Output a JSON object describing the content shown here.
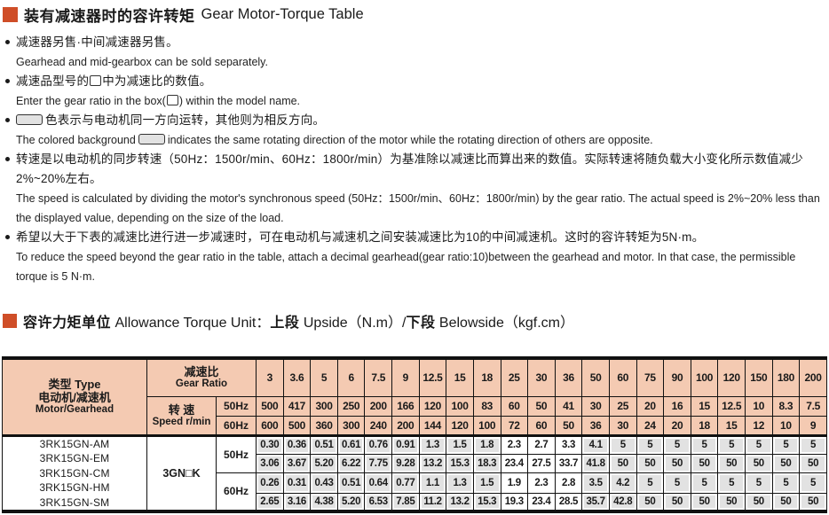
{
  "section1": {
    "title_zh": "装有减速器时的容许转矩",
    "title_en": "Gear Motor-Torque Table"
  },
  "notes": {
    "n1": {
      "zh": "减速器另售·中间减速器另售。",
      "en": "Gearhead and mid-gearbox can be sold separately."
    },
    "n2": {
      "zh_a": "减速品型号的",
      "zh_b": "中为减速比的数值。",
      "en_a": "Enter the gear ratio in the box(",
      "en_b": ") within the model name."
    },
    "n3": {
      "zh_b": "色表示与电动机同一方向运转，其他则为相反方向。",
      "en_a": "The colored background",
      "en_b": "indicates the same rotating direction of the motor while the rotating direction of others are opposite."
    },
    "n4": {
      "zh": "转速是以电动机的同步转速（50Hz：1500r/min、60Hz：1800r/min）为基准除以减速比而算出来的数值。实际转速将随负载大小变化所示数值减少2%~20%左右。",
      "en": "The speed is calculated by dividing the motor's synchronous speed (50Hz：1500r/min、60Hz：1800r/min) by the gear ratio. The actual speed is 2%~20% less than the displayed value, depending on the size of the load."
    },
    "n5": {
      "zh": "希望以大于下表的减速比进行进一步减速时，可在电动机与减速机之间安装减速比为10的中间减速机。这时的容许转矩为5N·m。",
      "en": "To reduce the speed beyond the gear ratio in the table, attach a decimal gearhead(gear ratio:10)between the gearhead and motor. In that case, the permissible torque is 5 N·m."
    }
  },
  "section2": {
    "title_zh": "容许力矩单位",
    "title_en": "Allowance Torque Unit：",
    "up_zh": "上段",
    "up_en": "Upside（N.m）/",
    "down_zh": "下段",
    "down_en": "Belowside（kgf.cm）"
  },
  "table": {
    "type_line1": "类型 Type",
    "type_line2": "电动机/减速机",
    "type_line3": "Motor/Gearhead",
    "gear_ratio_zh": "减速比",
    "gear_ratio_en": "Gear Ratio",
    "speed_zh": "转 速",
    "speed_en": "Speed r/min",
    "hz50": "50Hz",
    "hz60": "60Hz",
    "ratios": [
      "3",
      "3.6",
      "5",
      "6",
      "7.5",
      "9",
      "12.5",
      "15",
      "18",
      "25",
      "30",
      "36",
      "50",
      "60",
      "75",
      "90",
      "100",
      "120",
      "150",
      "180",
      "200"
    ],
    "speed_50hz": [
      "500",
      "417",
      "300",
      "250",
      "200",
      "166",
      "120",
      "100",
      "83",
      "60",
      "50",
      "41",
      "30",
      "25",
      "20",
      "16",
      "15",
      "12.5",
      "10",
      "8.3",
      "7.5"
    ],
    "speed_60hz": [
      "600",
      "500",
      "360",
      "300",
      "240",
      "200",
      "144",
      "120",
      "100",
      "72",
      "60",
      "50",
      "36",
      "30",
      "24",
      "20",
      "18",
      "15",
      "12",
      "10",
      "9"
    ],
    "models": [
      "3RK15GN-AM",
      "3RK15GN-EM",
      "3RK15GN-CM",
      "3RK15GN-HM",
      "3RK15GN-SM"
    ],
    "gearhead": "3GN□K",
    "rows": {
      "nm_50": [
        "0.30",
        "0.36",
        "0.51",
        "0.61",
        "0.76",
        "0.91",
        "1.3",
        "1.5",
        "1.8",
        "2.3",
        "2.7",
        "3.3",
        "4.1",
        "5",
        "5",
        "5",
        "5",
        "5",
        "5",
        "5",
        "5"
      ],
      "kgf_50": [
        "3.06",
        "3.67",
        "5.20",
        "6.22",
        "7.75",
        "9.28",
        "13.2",
        "15.3",
        "18.3",
        "23.4",
        "27.5",
        "33.7",
        "41.8",
        "50",
        "50",
        "50",
        "50",
        "50",
        "50",
        "50",
        "50"
      ],
      "nm_60": [
        "0.26",
        "0.31",
        "0.43",
        "0.51",
        "0.64",
        "0.77",
        "1.1",
        "1.3",
        "1.5",
        "1.9",
        "2.3",
        "2.8",
        "3.5",
        "4.2",
        "5",
        "5",
        "5",
        "5",
        "5",
        "5",
        "5"
      ],
      "kgf_60": [
        "2.65",
        "3.16",
        "4.38",
        "5.20",
        "6.53",
        "7.85",
        "11.2",
        "13.2",
        "15.3",
        "19.3",
        "23.4",
        "28.5",
        "35.7",
        "42.8",
        "50",
        "50",
        "50",
        "50",
        "50",
        "50",
        "50"
      ]
    },
    "opposite_indices": [
      9,
      10,
      11
    ],
    "colors": {
      "header_bg": "#f4cab2",
      "same_direction_bg": "#e2e2e2",
      "marker": "#cf4e28"
    }
  }
}
